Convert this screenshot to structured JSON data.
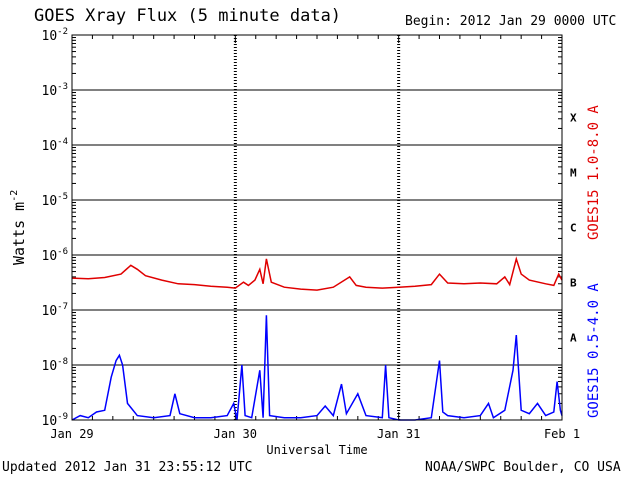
{
  "header": {
    "title": "GOES Xray Flux (5 minute data)",
    "begin": "Begin:  2012 Jan 29 0000 UTC"
  },
  "footer": {
    "updated": "Updated 2012 Jan 31 23:55:12 UTC",
    "credit": "NOAA/SWPC Boulder, CO USA"
  },
  "colors": {
    "long_channel": "#e00000",
    "short_channel": "#0000ff",
    "axis": "#000000"
  },
  "chart_data": {
    "type": "line",
    "title": "GOES Xray Flux (5 minute data)",
    "xlabel": "Universal Time",
    "ylabel": "Watts m",
    "ylabel_exp": "-2",
    "y_scale": "log",
    "ylim": [
      1e-09,
      0.01
    ],
    "xlim_days": [
      0,
      3
    ],
    "grid": true,
    "x_ticks": [
      {
        "day": 0,
        "label": "Jan 29"
      },
      {
        "day": 1,
        "label": "Jan 30"
      },
      {
        "day": 2,
        "label": "Jan 31"
      },
      {
        "day": 3,
        "label": "Feb 1"
      }
    ],
    "y_ticks": [
      {
        "exp": -2,
        "label": "10",
        "sup": "-2"
      },
      {
        "exp": -3,
        "label": "10",
        "sup": "-3"
      },
      {
        "exp": -4,
        "label": "10",
        "sup": "-4"
      },
      {
        "exp": -5,
        "label": "10",
        "sup": "-5"
      },
      {
        "exp": -6,
        "label": "10",
        "sup": "-6"
      },
      {
        "exp": -7,
        "label": "10",
        "sup": "-7"
      },
      {
        "exp": -8,
        "label": "10",
        "sup": "-8"
      },
      {
        "exp": -9,
        "label": "10",
        "sup": "-9"
      }
    ],
    "flare_classes": [
      {
        "label": "X",
        "exp": -3.5
      },
      {
        "label": "M",
        "exp": -4.5
      },
      {
        "label": "C",
        "exp": -5.5
      },
      {
        "label": "B",
        "exp": -6.5
      },
      {
        "label": "A",
        "exp": -7.5
      }
    ],
    "series": [
      {
        "name": "GOES15 1.0-8.0 A",
        "color": "#e00000",
        "points": [
          [
            0.0,
            3.8e-07
          ],
          [
            0.1,
            3.7e-07
          ],
          [
            0.2,
            3.9e-07
          ],
          [
            0.3,
            4.5e-07
          ],
          [
            0.36,
            6.5e-07
          ],
          [
            0.4,
            5.5e-07
          ],
          [
            0.45,
            4.2e-07
          ],
          [
            0.55,
            3.5e-07
          ],
          [
            0.65,
            3e-07
          ],
          [
            0.75,
            2.9e-07
          ],
          [
            0.85,
            2.7e-07
          ],
          [
            0.95,
            2.6e-07
          ],
          [
            1.0,
            2.5e-07
          ],
          [
            1.05,
            3.2e-07
          ],
          [
            1.08,
            2.8e-07
          ],
          [
            1.12,
            3.5e-07
          ],
          [
            1.15,
            5.5e-07
          ],
          [
            1.17,
            3e-07
          ],
          [
            1.19,
            8.5e-07
          ],
          [
            1.22,
            3.2e-07
          ],
          [
            1.3,
            2.6e-07
          ],
          [
            1.4,
            2.4e-07
          ],
          [
            1.5,
            2.3e-07
          ],
          [
            1.6,
            2.6e-07
          ],
          [
            1.7,
            4e-07
          ],
          [
            1.74,
            2.8e-07
          ],
          [
            1.8,
            2.6e-07
          ],
          [
            1.9,
            2.5e-07
          ],
          [
            2.0,
            2.6e-07
          ],
          [
            2.1,
            2.7e-07
          ],
          [
            2.2,
            2.9e-07
          ],
          [
            2.25,
            4.5e-07
          ],
          [
            2.3,
            3.1e-07
          ],
          [
            2.4,
            3e-07
          ],
          [
            2.5,
            3.1e-07
          ],
          [
            2.6,
            3e-07
          ],
          [
            2.65,
            4e-07
          ],
          [
            2.68,
            2.9e-07
          ],
          [
            2.72,
            8.5e-07
          ],
          [
            2.75,
            4.5e-07
          ],
          [
            2.8,
            3.5e-07
          ],
          [
            2.9,
            3e-07
          ],
          [
            2.95,
            2.8e-07
          ],
          [
            2.98,
            4.5e-07
          ],
          [
            3.0,
            3.5e-07
          ]
        ]
      },
      {
        "name": "GOES15 0.5-4.0 A",
        "color": "#0000ff",
        "points": [
          [
            0.0,
            1e-09
          ],
          [
            0.05,
            1.2e-09
          ],
          [
            0.1,
            1.1e-09
          ],
          [
            0.15,
            1.4e-09
          ],
          [
            0.2,
            1.5e-09
          ],
          [
            0.24,
            6e-09
          ],
          [
            0.27,
            1.2e-08
          ],
          [
            0.29,
            1.5e-08
          ],
          [
            0.31,
            1e-08
          ],
          [
            0.34,
            2e-09
          ],
          [
            0.4,
            1.2e-09
          ],
          [
            0.5,
            1.1e-09
          ],
          [
            0.6,
            1.2e-09
          ],
          [
            0.63,
            3e-09
          ],
          [
            0.66,
            1.3e-09
          ],
          [
            0.75,
            1.1e-09
          ],
          [
            0.85,
            1.1e-09
          ],
          [
            0.95,
            1.2e-09
          ],
          [
            0.99,
            2e-09
          ],
          [
            1.01,
            1e-09
          ],
          [
            1.04,
            1e-08
          ],
          [
            1.06,
            1.2e-09
          ],
          [
            1.1,
            1.1e-09
          ],
          [
            1.15,
            8e-09
          ],
          [
            1.17,
            1.1e-09
          ],
          [
            1.19,
            8e-08
          ],
          [
            1.21,
            1.2e-09
          ],
          [
            1.3,
            1.1e-09
          ],
          [
            1.4,
            1.1e-09
          ],
          [
            1.5,
            1.2e-09
          ],
          [
            1.55,
            1.8e-09
          ],
          [
            1.6,
            1.2e-09
          ],
          [
            1.65,
            4.5e-09
          ],
          [
            1.68,
            1.3e-09
          ],
          [
            1.75,
            3e-09
          ],
          [
            1.8,
            1.2e-09
          ],
          [
            1.9,
            1.1e-09
          ],
          [
            1.92,
            1e-08
          ],
          [
            1.94,
            1.1e-09
          ],
          [
            2.0,
            1e-09
          ],
          [
            2.1,
            1e-09
          ],
          [
            2.2,
            1.1e-09
          ],
          [
            2.25,
            1.2e-08
          ],
          [
            2.27,
            1.4e-09
          ],
          [
            2.3,
            1.2e-09
          ],
          [
            2.4,
            1.1e-09
          ],
          [
            2.5,
            1.2e-09
          ],
          [
            2.55,
            2e-09
          ],
          [
            2.58,
            1.1e-09
          ],
          [
            2.65,
            1.5e-09
          ],
          [
            2.7,
            8e-09
          ],
          [
            2.72,
            3.5e-08
          ],
          [
            2.75,
            1.5e-09
          ],
          [
            2.8,
            1.3e-09
          ],
          [
            2.85,
            2e-09
          ],
          [
            2.9,
            1.2e-09
          ],
          [
            2.95,
            1.4e-09
          ],
          [
            2.97,
            5e-09
          ],
          [
            2.99,
            1.5e-09
          ],
          [
            3.0,
            1.2e-09
          ]
        ]
      }
    ]
  }
}
